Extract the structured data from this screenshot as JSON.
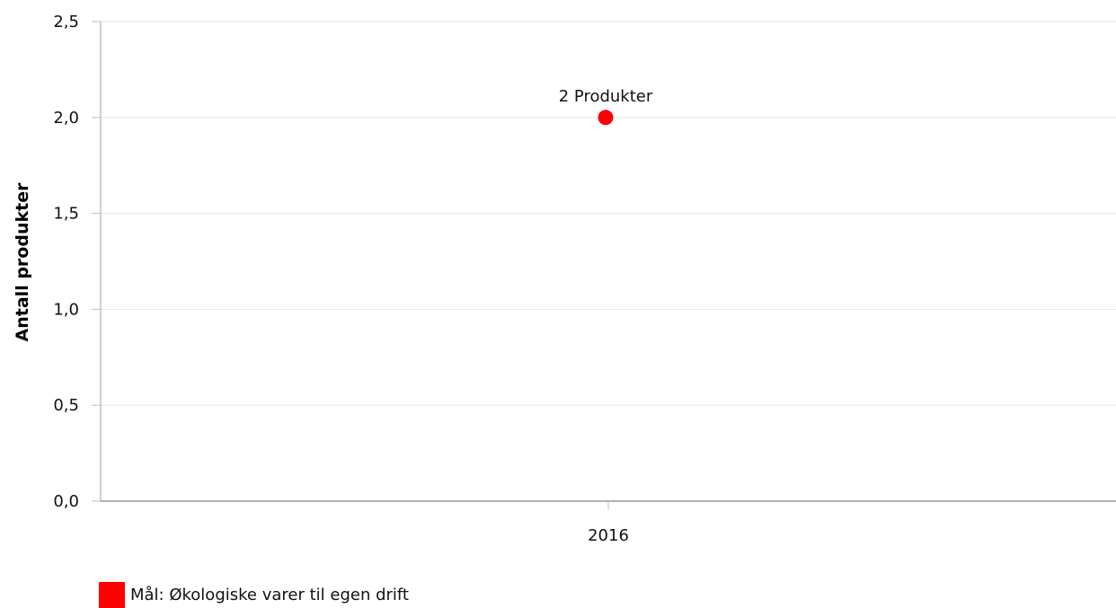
{
  "chart_data": {
    "type": "scatter",
    "title": "",
    "xlabel": "",
    "ylabel": "Antall produkter",
    "categories": [
      "2016"
    ],
    "series": [
      {
        "name": "Mål: Økologiske varer til egen drift",
        "color": "#ff0000",
        "values": [
          2
        ],
        "labels": [
          "2 Produkter"
        ]
      }
    ],
    "y_ticks": [
      "0,0",
      "0,5",
      "1,0",
      "1,5",
      "2,0",
      "2,5"
    ],
    "ylim": [
      0,
      2.5
    ],
    "grid": true,
    "legend_position": "bottom-left",
    "colors": {
      "grid": "#e6e6e6",
      "axis": "#c0c0c0",
      "marker": "#ff0000"
    }
  }
}
